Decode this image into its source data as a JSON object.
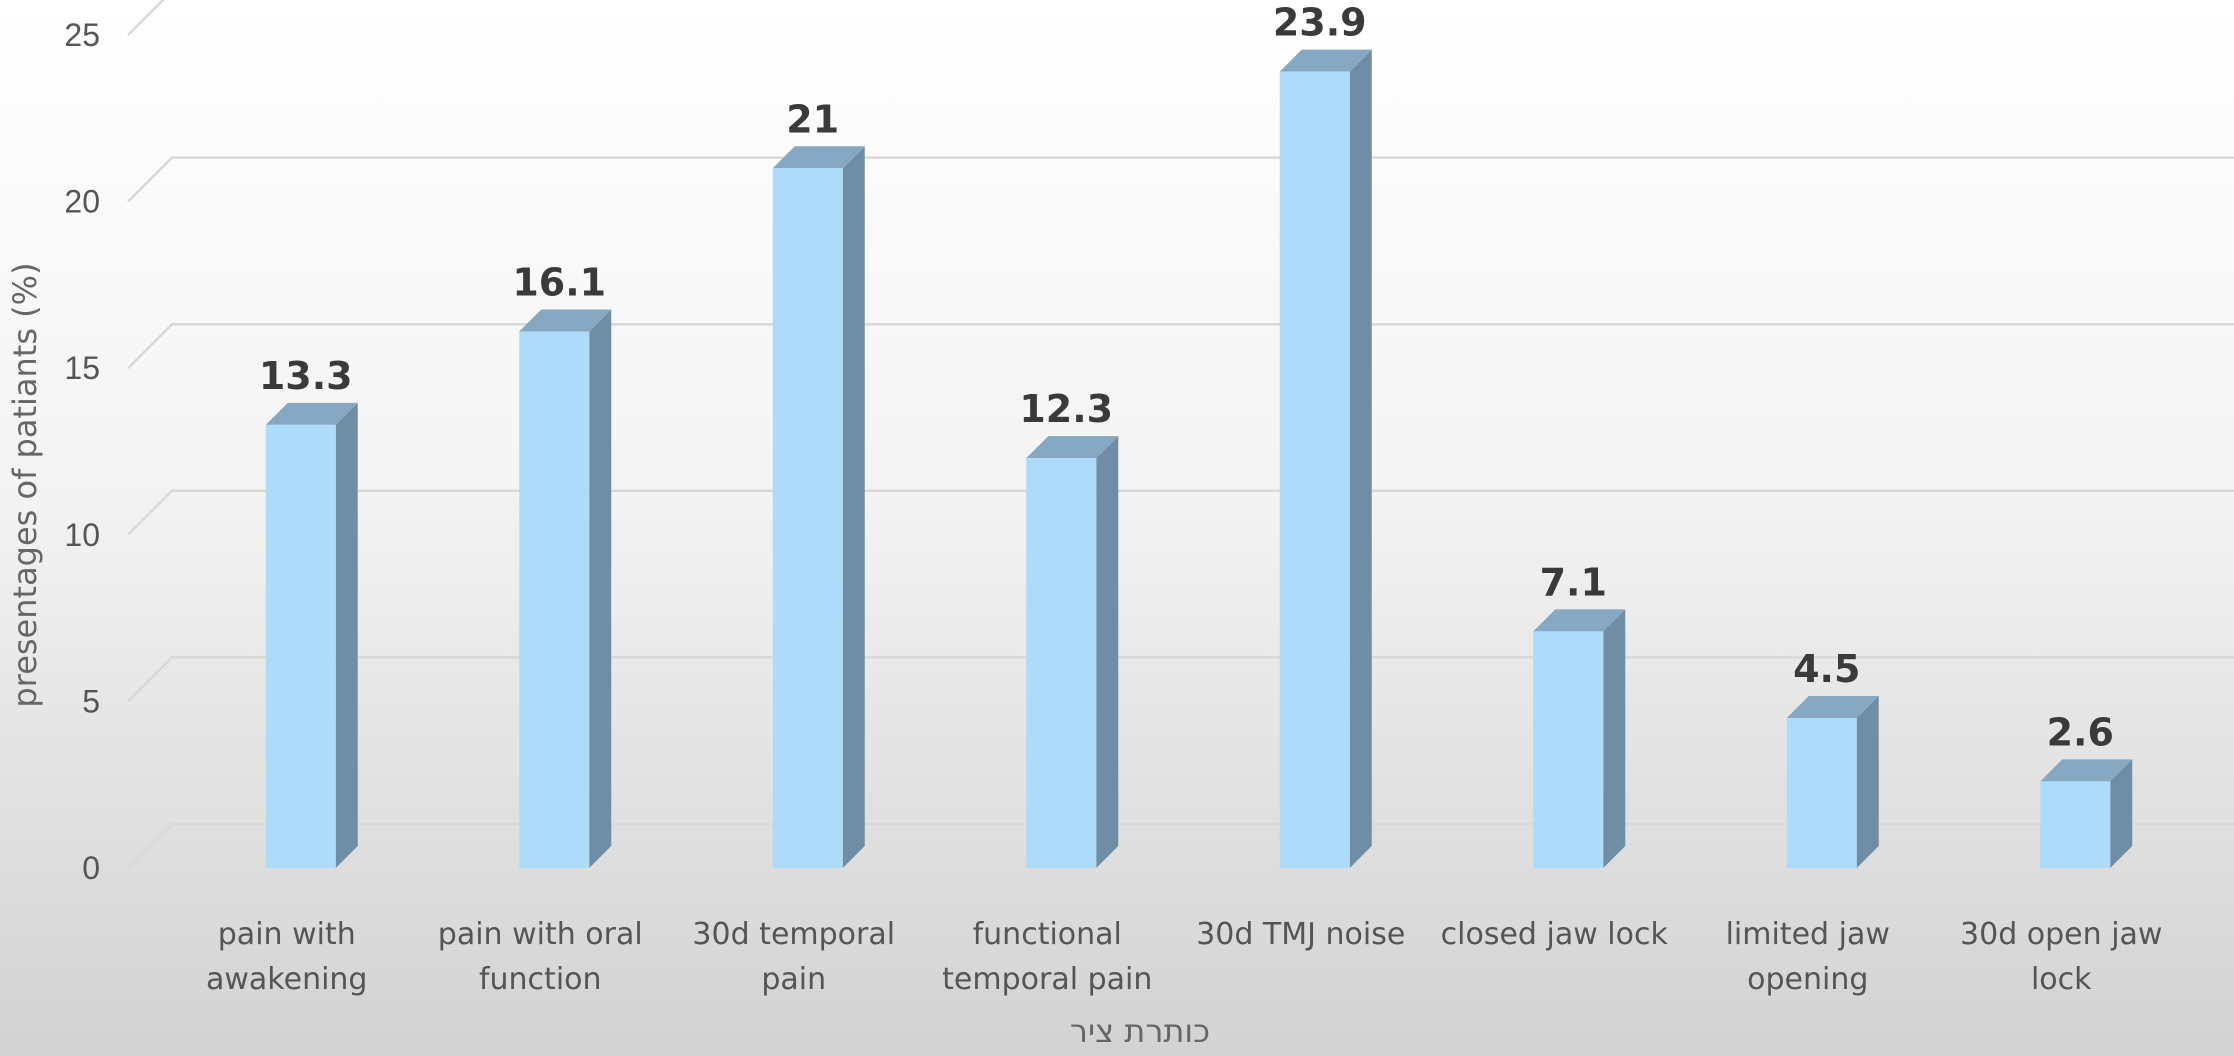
{
  "chart_data": {
    "type": "bar",
    "categories": [
      [
        "pain with",
        "awakening"
      ],
      [
        "pain with oral",
        "function"
      ],
      [
        "30d temporal",
        "pain"
      ],
      [
        "functional",
        "temporal pain"
      ],
      [
        "30d TMJ noise"
      ],
      [
        "closed jaw lock"
      ],
      [
        "limited jaw",
        "opening"
      ],
      [
        "30d open jaw",
        "lock"
      ]
    ],
    "values": [
      13.3,
      16.1,
      21,
      12.3,
      23.9,
      7.1,
      4.5,
      2.6
    ],
    "data_labels": [
      "13.3",
      "16.1",
      "21",
      "12.3",
      "23.9",
      "7.1",
      "4.5",
      "2.6"
    ],
    "title": "",
    "xlabel": "כותרת ציר",
    "ylabel": "presentages of patiants (%)",
    "ylim": [
      0,
      25
    ],
    "yticks": [
      0,
      5,
      10,
      15,
      20,
      25
    ],
    "grid": true,
    "legend": "none",
    "style": "3d-column",
    "colors": {
      "bar_front": "#addcfa",
      "bar_side": "#6f8da4",
      "bar_top": "#86a8c2",
      "grid": "#d9d9d9"
    }
  }
}
